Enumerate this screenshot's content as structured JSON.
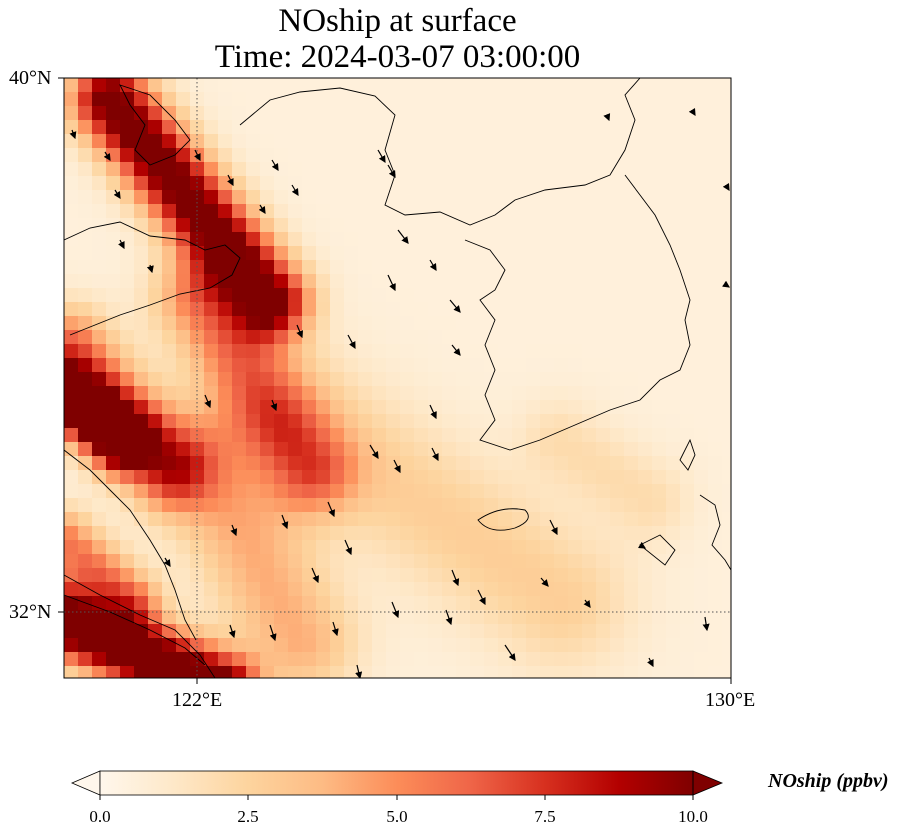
{
  "title": {
    "line1": "NOship at surface",
    "line2": "Time: 2024-03-07 03:00:00"
  },
  "axes": {
    "lat_labels": [
      "40°N",
      "32°N"
    ],
    "lon_labels": [
      "122°E",
      "130°E"
    ],
    "extent": {
      "lon_min": 120,
      "lon_max": 130,
      "lat_min": 31,
      "lat_max": 40
    },
    "gridlines": {
      "lat": [
        32,
        40
      ],
      "lon": [
        122,
        130
      ],
      "style": "dotted"
    }
  },
  "colorbar": {
    "label": "NOship (ppbv)",
    "ticks": [
      "0.0",
      "2.5",
      "5.0",
      "7.5",
      "10.0"
    ],
    "min": 0,
    "max": 10,
    "colormap": "OrRd",
    "extend": "both",
    "colors": [
      "#fff7ec",
      "#fee8c8",
      "#fdd49e",
      "#fdbb84",
      "#fc8d59",
      "#ef6548",
      "#d7301f",
      "#b30000",
      "#7f0000"
    ]
  },
  "map_layers": [
    "NOship concentration field",
    "coastlines",
    "wind vectors"
  ]
}
